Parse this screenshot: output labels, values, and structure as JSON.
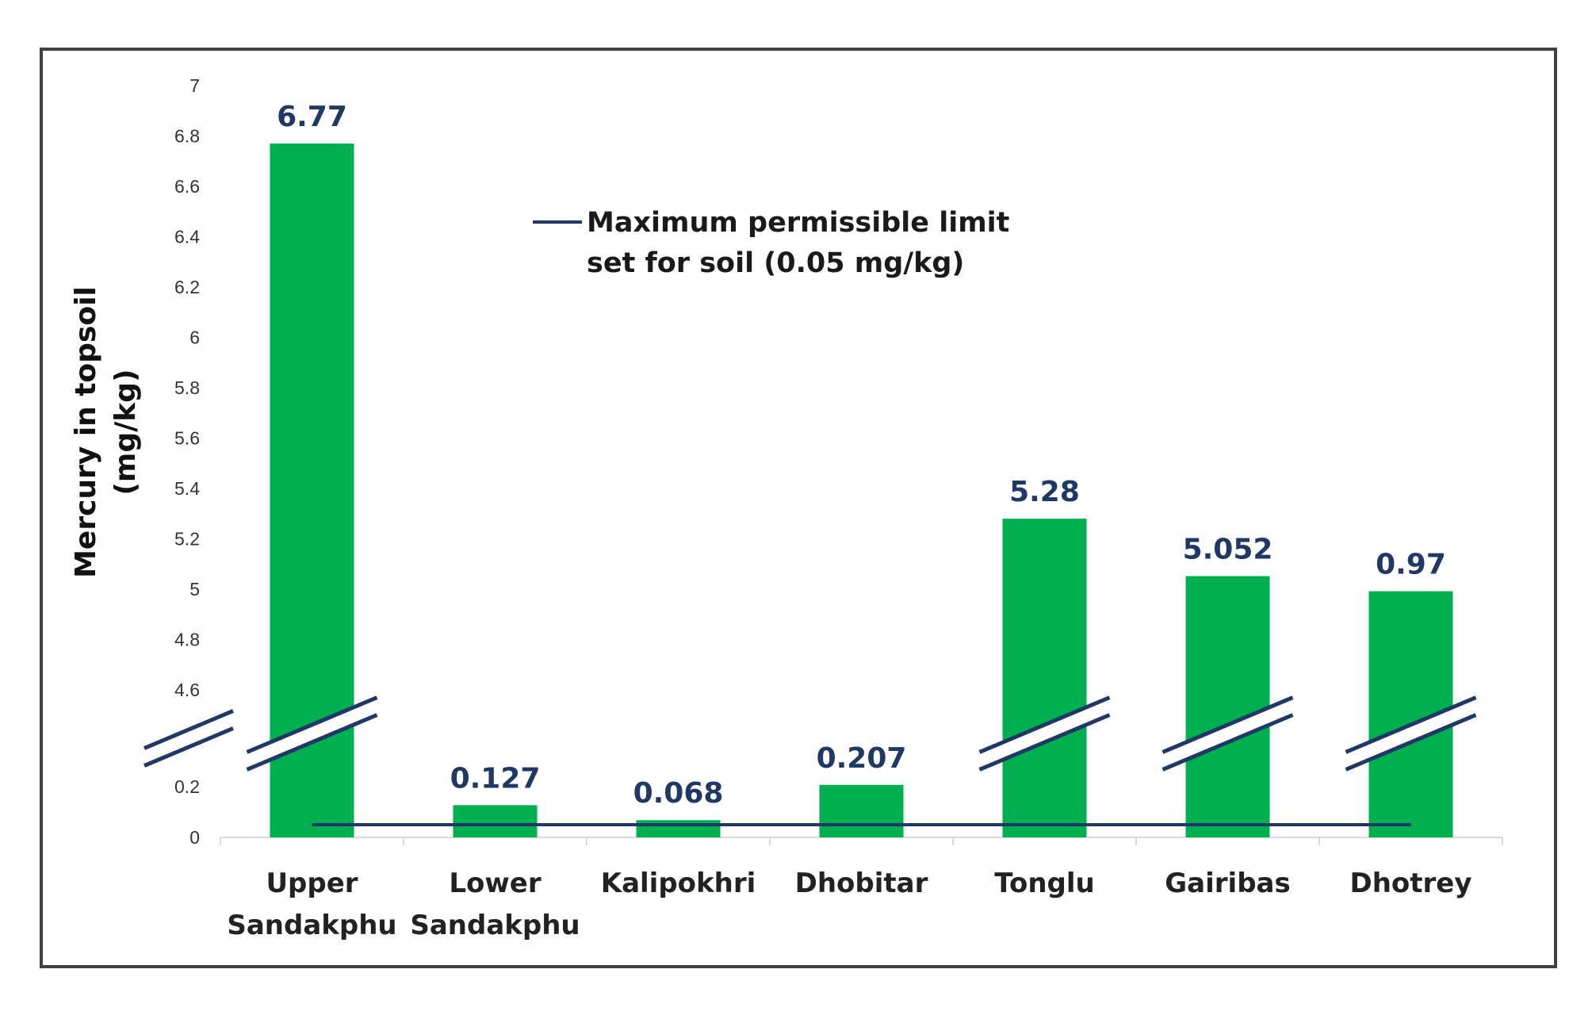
{
  "chart_data": {
    "type": "bar",
    "categories": [
      [
        "Upper",
        "Sandakphu"
      ],
      [
        "Lower",
        "Sandakphu"
      ],
      [
        "Kalipokhri"
      ],
      [
        "Dhobitar"
      ],
      [
        "Tonglu"
      ],
      [
        "Gairibas"
      ],
      [
        "Dhotrey"
      ]
    ],
    "values": [
      6.77,
      0.127,
      0.068,
      0.207,
      5.28,
      5.052,
      0.97
    ],
    "data_labels": [
      "6.77",
      "0.127",
      "0.068",
      "0.207",
      "5.28",
      "5.052",
      "0.97"
    ],
    "ylabel": [
      "Mercury in topsoil",
      "(mg/kg)"
    ],
    "axis_break": {
      "lower_range": [
        0,
        0.2
      ],
      "upper_range": [
        4.6,
        7
      ]
    },
    "y_ticks_lower": [
      "0",
      "0.2"
    ],
    "y_ticks_upper": [
      "4.6",
      "4.8",
      "5",
      "5.2",
      "5.4",
      "5.6",
      "5.8",
      "6",
      "6.2",
      "6.4",
      "6.6",
      "6.8",
      "7"
    ],
    "reference_line": {
      "label": [
        "Maximum permissible limit",
        "set for soil (0.05 mg/kg)"
      ],
      "value": 0.05,
      "color": "#1f3864"
    },
    "bar_color": "#00b050",
    "grid": false,
    "legend_position": "top-center"
  }
}
